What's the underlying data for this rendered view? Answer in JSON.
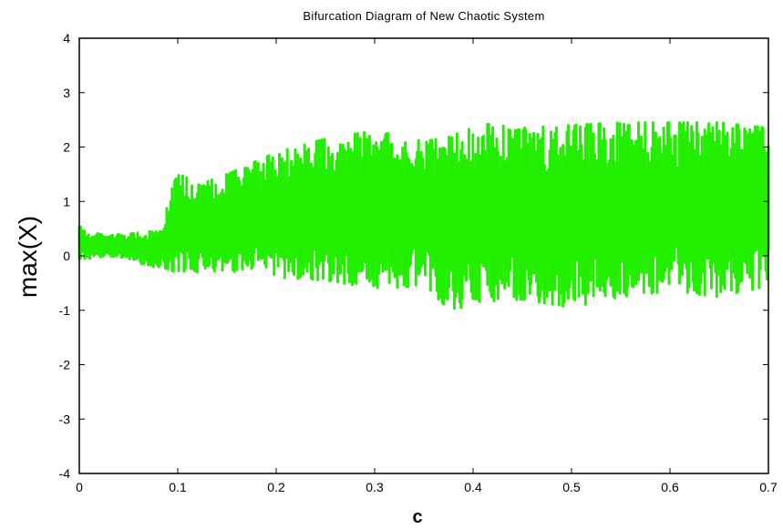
{
  "chart_data": {
    "type": "scatter",
    "title": "Bifurcation Diagram of New Chaotic System",
    "xlabel": "c",
    "ylabel": "max(X)",
    "xlim": [
      0,
      0.7
    ],
    "ylim": [
      -4,
      4
    ],
    "xticks": [
      "0",
      "0.1",
      "0.2",
      "0.3",
      "0.4",
      "0.5",
      "0.6",
      "0.7"
    ],
    "yticks": [
      "4",
      "3",
      "2",
      "1",
      "0",
      "-1",
      "-2",
      "-3",
      "-4"
    ],
    "grid": false,
    "legend": "none",
    "series_color": "#22ee00",
    "envelope": {
      "x": [
        0.0,
        0.01,
        0.03,
        0.05,
        0.07,
        0.085,
        0.09,
        0.1,
        0.12,
        0.15,
        0.2,
        0.25,
        0.3,
        0.35,
        0.38,
        0.4,
        0.45,
        0.5,
        0.55,
        0.6,
        0.65,
        0.7
      ],
      "upper": [
        0.55,
        0.45,
        0.38,
        0.4,
        0.45,
        0.45,
        1.0,
        1.55,
        1.3,
        1.5,
        1.9,
        2.15,
        2.3,
        2.1,
        2.2,
        2.45,
        2.35,
        2.4,
        2.45,
        2.45,
        2.45,
        2.35
      ],
      "lower": [
        -0.05,
        -0.05,
        0.0,
        -0.05,
        -0.2,
        -0.2,
        -0.25,
        -0.3,
        -0.3,
        -0.3,
        -0.4,
        -0.45,
        -0.6,
        -0.55,
        -1.05,
        -0.85,
        -0.8,
        -0.95,
        -0.75,
        -0.65,
        -0.75,
        -0.55
      ]
    }
  }
}
